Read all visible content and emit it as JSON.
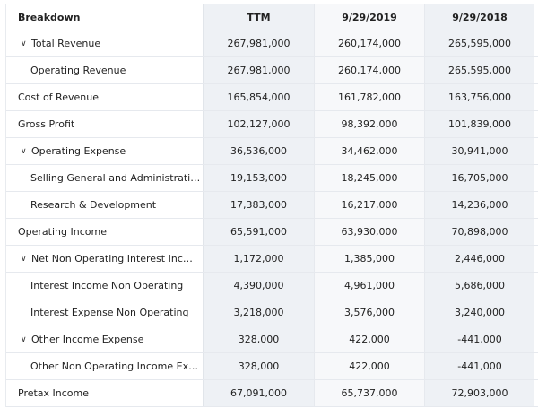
{
  "header": {
    "breakdown": "Breakdown",
    "columns": [
      "TTM",
      "9/29/2019",
      "9/29/2018"
    ]
  },
  "rows": [
    {
      "label": "Total Revenue",
      "expandable": true,
      "indent": 0,
      "values": [
        "267,981,000",
        "260,174,000",
        "265,595,000"
      ]
    },
    {
      "label": "Operating Revenue",
      "expandable": false,
      "indent": 1,
      "values": [
        "267,981,000",
        "260,174,000",
        "265,595,000"
      ]
    },
    {
      "label": "Cost of Revenue",
      "expandable": false,
      "indent": 0,
      "values": [
        "165,854,000",
        "161,782,000",
        "163,756,000"
      ]
    },
    {
      "label": "Gross Profit",
      "expandable": false,
      "indent": 0,
      "values": [
        "102,127,000",
        "98,392,000",
        "101,839,000"
      ]
    },
    {
      "label": "Operating Expense",
      "expandable": true,
      "indent": 0,
      "values": [
        "36,536,000",
        "34,462,000",
        "30,941,000"
      ]
    },
    {
      "label": "Selling General and Administrati…",
      "expandable": false,
      "indent": 1,
      "values": [
        "19,153,000",
        "18,245,000",
        "16,705,000"
      ]
    },
    {
      "label": "Research & Development",
      "expandable": false,
      "indent": 1,
      "values": [
        "17,383,000",
        "16,217,000",
        "14,236,000"
      ]
    },
    {
      "label": "Operating Income",
      "expandable": false,
      "indent": 0,
      "values": [
        "65,591,000",
        "63,930,000",
        "70,898,000"
      ]
    },
    {
      "label": "Net Non Operating Interest Inc…",
      "expandable": true,
      "indent": 0,
      "values": [
        "1,172,000",
        "1,385,000",
        "2,446,000"
      ]
    },
    {
      "label": "Interest Income Non Operating",
      "expandable": false,
      "indent": 1,
      "values": [
        "4,390,000",
        "4,961,000",
        "5,686,000"
      ]
    },
    {
      "label": "Interest Expense Non Operating",
      "expandable": false,
      "indent": 1,
      "values": [
        "3,218,000",
        "3,576,000",
        "3,240,000"
      ]
    },
    {
      "label": "Other Income Expense",
      "expandable": true,
      "indent": 0,
      "values": [
        "328,000",
        "422,000",
        "-441,000"
      ]
    },
    {
      "label": "Other Non Operating Income Ex…",
      "expandable": false,
      "indent": 1,
      "values": [
        "328,000",
        "422,000",
        "-441,000"
      ]
    },
    {
      "label": "Pretax Income",
      "expandable": false,
      "indent": 0,
      "values": [
        "67,091,000",
        "65,737,000",
        "72,903,000"
      ]
    }
  ]
}
